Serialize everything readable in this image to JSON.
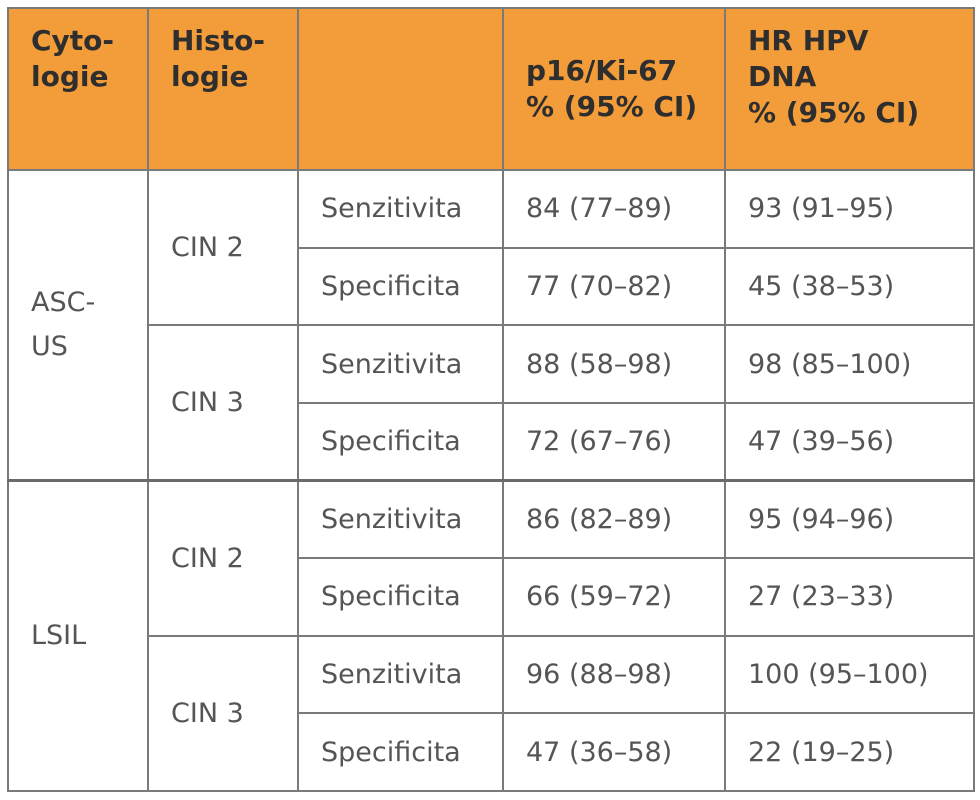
{
  "header": {
    "cytology": [
      "Cyto-",
      "logie"
    ],
    "histology": [
      "Histo-",
      "logie"
    ],
    "metric": "",
    "p16": [
      "p16/Ki-67",
      "% (95% CI)"
    ],
    "hpv": [
      "HR HPV",
      "DNA",
      "% (95% CI)"
    ]
  },
  "groups": [
    {
      "cytology": [
        "ASC-",
        "US"
      ],
      "histology": [
        {
          "name": "CIN 2",
          "rows": [
            {
              "metric": "Senzitivita",
              "p16": "84 (77–89)",
              "hpv": "93 (91–95)"
            },
            {
              "metric": "Specificita",
              "p16": "77 (70–82)",
              "hpv": "45 (38–53)"
            }
          ]
        },
        {
          "name": "CIN 3",
          "rows": [
            {
              "metric": "Senzitivita",
              "p16": "88 (58–98)",
              "hpv": "98 (85–100)"
            },
            {
              "metric": "Specificita",
              "p16": "72 (67–76)",
              "hpv": "47 (39–56)"
            }
          ]
        }
      ]
    },
    {
      "cytology": [
        "LSIL"
      ],
      "histology": [
        {
          "name": "CIN 2",
          "rows": [
            {
              "metric": "Senzitivita",
              "p16": "86 (82–89)",
              "hpv": "95 (94–96)"
            },
            {
              "metric": "Specificita",
              "p16": "66 (59–72)",
              "hpv": "27 (23–33)"
            }
          ]
        },
        {
          "name": "CIN 3",
          "rows": [
            {
              "metric": "Senzitivita",
              "p16": "96 (88–98)",
              "hpv": "100 (95–100)"
            },
            {
              "metric": "Specificita",
              "p16": "47 (36–58)",
              "hpv": "22 (19–25)"
            }
          ]
        }
      ]
    }
  ],
  "colors": {
    "header_bg": "#f39c3a",
    "border": "#7a7a7a",
    "body_text": "#555555",
    "header_text": "#2e2e2e"
  }
}
